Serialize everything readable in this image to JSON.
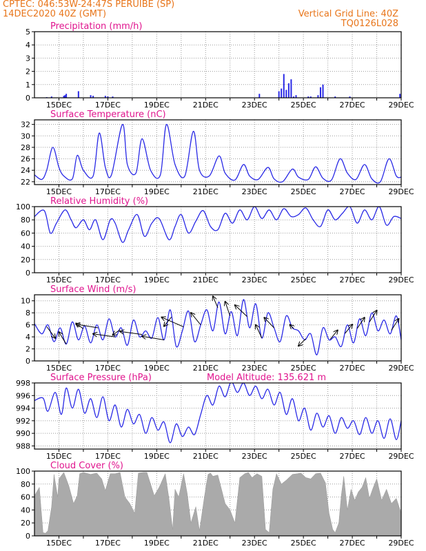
{
  "header": {
    "left_line1": "CPTEC:   046:53W-24:47S   PERUIBE (SP)",
    "left_line2": "14DEC2020 40Z (GMT)",
    "right_line1": "Vertical Grid Line: 40Z",
    "right_line2": "TQ0126L028",
    "color": "#e8751a"
  },
  "colors": {
    "title": "#e0158e",
    "line": "#2929e6",
    "bar": "#2929e6",
    "cloud": "#aaaaaa",
    "arrow": "#000000",
    "grid": "#999999"
  },
  "x_axis": {
    "range": [
      "14DEC2020",
      "29DEC2020"
    ],
    "tick_labels": [
      "15DEC",
      "17DEC",
      "19DEC",
      "21DEC",
      "23DEC",
      "25DEC",
      "27DEC",
      "29DEC"
    ]
  },
  "chart_data": [
    {
      "type": "bar",
      "title": "Precipitation (mm/h)",
      "ylim": [
        0,
        5
      ],
      "yticks": [
        0,
        1,
        2,
        3,
        4,
        5
      ],
      "x": [
        0.5,
        0.7,
        1.2,
        1.25,
        1.3,
        1.8,
        2.3,
        2.4,
        2.9,
        3.0,
        3.2,
        9.2,
        10.0,
        10.1,
        10.2,
        10.3,
        10.4,
        10.5,
        10.6,
        10.7,
        11.2,
        11.3,
        11.6,
        11.7,
        11.8,
        12.3,
        12.9,
        14.95
      ],
      "values": [
        0.05,
        0.1,
        0.15,
        0.2,
        0.3,
        0.5,
        0.2,
        0.15,
        0.15,
        0.1,
        0.1,
        0.3,
        0.5,
        0.7,
        1.8,
        0.6,
        1.1,
        1.4,
        0.1,
        0.2,
        0.1,
        0.1,
        0.2,
        0.8,
        1.0,
        0.1,
        0.1,
        0.3
      ]
    },
    {
      "type": "line",
      "title": "Surface Temperature (nC)",
      "ylim": [
        21.5,
        32.8
      ],
      "yticks": [
        22,
        24,
        26,
        28,
        30,
        32
      ],
      "x": [
        0,
        0.3,
        0.5,
        0.75,
        1.0,
        1.2,
        1.55,
        1.75,
        2.0,
        2.4,
        2.65,
        2.9,
        3.15,
        3.6,
        3.8,
        4.15,
        4.4,
        4.75,
        5.15,
        5.4,
        5.75,
        6.15,
        6.5,
        6.75,
        7.15,
        7.55,
        7.8,
        8.2,
        8.55,
        8.8,
        9.15,
        9.55,
        9.8,
        10.15,
        10.55,
        10.8,
        11.2,
        11.5,
        11.8,
        12.15,
        12.5,
        12.8,
        13.15,
        13.5,
        13.8,
        14.15,
        14.5,
        14.8,
        15.0
      ],
      "values": [
        23.2,
        22.4,
        24.0,
        28.0,
        24.5,
        23.0,
        22.5,
        26.6,
        24.0,
        23.0,
        30.5,
        24.5,
        23.2,
        32.0,
        25.0,
        23.5,
        29.5,
        24.0,
        23.2,
        32.0,
        25.0,
        23.0,
        30.8,
        24.0,
        23.0,
        26.5,
        23.5,
        22.3,
        25.0,
        23.0,
        22.4,
        24.5,
        22.5,
        22.0,
        24.2,
        22.8,
        22.4,
        24.6,
        22.6,
        22.3,
        26.0,
        23.5,
        22.4,
        25.0,
        22.5,
        22.0,
        26.0,
        23.0,
        22.8
      ],
      "series_name": ""
    },
    {
      "type": "line",
      "title": "Relative Humidity (%)",
      "ylim": [
        0,
        100
      ],
      "yticks": [
        0,
        20,
        40,
        60,
        80,
        100
      ],
      "x": [
        0,
        0.4,
        0.65,
        0.9,
        1.25,
        1.5,
        1.7,
        2.0,
        2.25,
        2.5,
        2.8,
        3.1,
        3.3,
        3.6,
        3.85,
        4.2,
        4.5,
        4.8,
        5.1,
        5.5,
        5.75,
        6.0,
        6.3,
        6.6,
        6.9,
        7.2,
        7.5,
        7.8,
        8.1,
        8.4,
        8.7,
        9.0,
        9.3,
        9.6,
        9.9,
        10.2,
        10.5,
        10.8,
        11.1,
        11.4,
        11.7,
        12.0,
        12.3,
        12.6,
        12.9,
        13.2,
        13.5,
        13.8,
        14.1,
        14.4,
        14.7,
        15.0
      ],
      "values": [
        85,
        94,
        60,
        75,
        95,
        80,
        68,
        80,
        65,
        80,
        50,
        80,
        75,
        46,
        65,
        88,
        55,
        75,
        82,
        50,
        70,
        88,
        60,
        78,
        94,
        70,
        65,
        90,
        75,
        95,
        80,
        100,
        82,
        95,
        80,
        97,
        85,
        88,
        98,
        80,
        70,
        95,
        80,
        90,
        100,
        75,
        95,
        80,
        100,
        72,
        85,
        82
      ]
    },
    {
      "type": "line",
      "title": "Surface Wind (m/s)",
      "ylim": [
        0,
        11
      ],
      "yticks": [
        0,
        2,
        4,
        6,
        8,
        10
      ],
      "x": [
        0,
        0.3,
        0.55,
        0.8,
        1.05,
        1.3,
        1.55,
        1.8,
        2.05,
        2.3,
        2.55,
        2.8,
        3.05,
        3.3,
        3.55,
        3.8,
        4.05,
        4.3,
        4.55,
        4.8,
        5.05,
        5.3,
        5.55,
        5.8,
        6.05,
        6.3,
        6.55,
        6.8,
        7.05,
        7.3,
        7.55,
        7.8,
        8.05,
        8.3,
        8.55,
        8.8,
        9.05,
        9.3,
        9.55,
        9.8,
        10.05,
        10.3,
        10.55,
        10.8,
        11.05,
        11.3,
        11.55,
        11.8,
        12.05,
        12.3,
        12.55,
        12.8,
        13.05,
        13.3,
        13.55,
        13.8,
        14.05,
        14.3,
        14.55,
        14.8,
        15.0
      ],
      "values": [
        6.2,
        4.5,
        6.0,
        3.2,
        5.5,
        2.8,
        6.5,
        3.5,
        5.8,
        3.0,
        6.0,
        3.5,
        7.0,
        4.0,
        5.5,
        2.6,
        6.8,
        4.0,
        5.0,
        3.8,
        7.2,
        3.5,
        8.5,
        2.4,
        5.0,
        8.3,
        3.2,
        6.0,
        8.5,
        5.0,
        9.8,
        4.5,
        8.2,
        4.2,
        10.2,
        5.5,
        9.5,
        3.8,
        8.0,
        5.5,
        3.2,
        7.5,
        5.5,
        5.0,
        3.5,
        4.5,
        1.0,
        5.5,
        3.5,
        4.0,
        2.4,
        6.0,
        3.0,
        7.0,
        4.2,
        8.0,
        5.0,
        6.8,
        4.5,
        7.5,
        3.5
      ],
      "vectors": [
        {
          "x": 0.5,
          "dx": 0.35,
          "dy": -1.9
        },
        {
          "x": 1.3,
          "dx": -0.3,
          "dy": 2.0
        },
        {
          "x": 2.0,
          "dx": -0.3,
          "dy": 0.9
        },
        {
          "x": 2.6,
          "dx": -0.9,
          "dy": 0.6
        },
        {
          "x": 3.3,
          "dx": -0.9,
          "dy": 0.5
        },
        {
          "x": 3.5,
          "dx": -0.3,
          "dy": -0.9
        },
        {
          "x": 4.4,
          "dx": -0.9,
          "dy": 0.5
        },
        {
          "x": 5.3,
          "dx": -0.9,
          "dy": 0.6
        },
        {
          "x": 5.6,
          "dx": -0.3,
          "dy": -1.5
        },
        {
          "x": 6.1,
          "dx": -0.9,
          "dy": 1.6
        },
        {
          "x": 6.8,
          "dx": -0.4,
          "dy": 2.0
        },
        {
          "x": 7.5,
          "dx": -0.2,
          "dy": 1.9
        },
        {
          "x": 8.0,
          "dx": -0.2,
          "dy": 2.4
        },
        {
          "x": 8.7,
          "dx": -0.5,
          "dy": 1.9
        },
        {
          "x": 9.3,
          "dx": -0.25,
          "dy": 2.2
        },
        {
          "x": 9.8,
          "dx": -0.4,
          "dy": 1.7
        },
        {
          "x": 10.6,
          "dx": -0.15,
          "dy": 0.6
        },
        {
          "x": 11.1,
          "dx": -0.3,
          "dy": -1.2
        },
        {
          "x": 12.1,
          "dx": 0.3,
          "dy": 1.5
        },
        {
          "x": 12.7,
          "dx": 0.3,
          "dy": 1.5
        },
        {
          "x": 13.2,
          "dx": 0.3,
          "dy": 1.8
        },
        {
          "x": 13.7,
          "dx": 0.3,
          "dy": 1.9
        },
        {
          "x": 14.6,
          "dx": 0.3,
          "dy": 1.9
        }
      ]
    },
    {
      "type": "line",
      "title": "Surface Pressure (hPa)",
      "annotation": "Model Altitude: 135.621 m",
      "ylim": [
        987.5,
        998
      ],
      "yticks": [
        988,
        990,
        992,
        994,
        996,
        998
      ],
      "x": [
        0,
        0.35,
        0.55,
        0.85,
        1.1,
        1.3,
        1.55,
        1.8,
        2.05,
        2.3,
        2.55,
        2.8,
        3.05,
        3.3,
        3.55,
        3.8,
        4.05,
        4.3,
        4.55,
        4.8,
        5.05,
        5.3,
        5.55,
        5.8,
        6.05,
        6.3,
        6.55,
        6.8,
        7.05,
        7.3,
        7.55,
        7.8,
        8.05,
        8.3,
        8.55,
        8.8,
        9.05,
        9.3,
        9.55,
        9.8,
        10.05,
        10.3,
        10.55,
        10.8,
        11.05,
        11.3,
        11.55,
        11.8,
        12.05,
        12.3,
        12.55,
        12.8,
        13.05,
        13.3,
        13.55,
        13.8,
        14.05,
        14.3,
        14.55,
        14.8,
        15.0
      ],
      "values": [
        995.2,
        995.6,
        993.5,
        996.5,
        993.0,
        997.2,
        994.0,
        997.0,
        993.2,
        995.5,
        992.5,
        995.8,
        992.0,
        994.5,
        991.0,
        993.8,
        991.5,
        993.0,
        990.0,
        992.5,
        990.5,
        991.8,
        988.5,
        991.5,
        989.5,
        991.0,
        989.8,
        993.0,
        996.0,
        994.5,
        997.5,
        995.8,
        998.2,
        996.5,
        998.0,
        996.0,
        997.5,
        995.5,
        997.0,
        994.5,
        996.5,
        993.0,
        995.5,
        992.0,
        994.0,
        990.5,
        993.2,
        991.0,
        992.8,
        990.0,
        992.5,
        990.8,
        992.0,
        989.8,
        992.5,
        990.0,
        992.0,
        989.2,
        992.3,
        989.0,
        992.0
      ]
    },
    {
      "type": "area",
      "title": "Cloud Cover (%)",
      "ylim": [
        0,
        100
      ],
      "yticks": [
        0,
        20,
        40,
        60,
        80,
        100
      ],
      "x": [
        0,
        0.2,
        0.35,
        0.45,
        0.55,
        0.7,
        0.8,
        0.95,
        1.0,
        1.2,
        1.4,
        1.6,
        1.75,
        1.85,
        2.0,
        2.3,
        2.55,
        2.75,
        2.9,
        3.1,
        3.3,
        3.5,
        3.7,
        3.9,
        4.1,
        4.25,
        4.45,
        4.6,
        4.75,
        4.9,
        5.1,
        5.35,
        5.5,
        5.65,
        5.75,
        5.9,
        6.1,
        6.25,
        6.4,
        6.6,
        6.75,
        6.95,
        7.1,
        7.2,
        7.3,
        7.5,
        7.8,
        8.0,
        8.2,
        8.4,
        8.6,
        8.75,
        8.9,
        9.1,
        9.3,
        9.45,
        9.6,
        9.75,
        9.9,
        10.1,
        10.3,
        10.55,
        10.75,
        10.9,
        11.1,
        11.3,
        11.5,
        11.7,
        11.9,
        12.05,
        12.2,
        12.3,
        12.45,
        12.55,
        12.65,
        12.8,
        12.95,
        13.1,
        13.25,
        13.4,
        13.55,
        13.7,
        13.85,
        14.0,
        14.2,
        14.4,
        14.6,
        14.8,
        15.0
      ],
      "values": [
        62,
        75,
        5,
        4,
        8,
        45,
        95,
        60,
        88,
        98,
        78,
        50,
        62,
        96,
        98,
        95,
        97,
        88,
        70,
        96,
        96,
        98,
        60,
        50,
        35,
        97,
        98,
        98,
        80,
        62,
        75,
        96,
        58,
        10,
        72,
        60,
        96,
        65,
        20,
        45,
        8,
        60,
        95,
        97,
        92,
        94,
        50,
        40,
        20,
        90,
        96,
        98,
        90,
        96,
        92,
        10,
        5,
        72,
        96,
        80,
        86,
        95,
        96,
        97,
        90,
        88,
        96,
        97,
        82,
        35,
        10,
        5,
        20,
        62,
        92,
        40,
        72,
        55,
        68,
        75,
        90,
        58,
        74,
        88,
        55,
        72,
        50,
        58,
        35
      ]
    }
  ]
}
